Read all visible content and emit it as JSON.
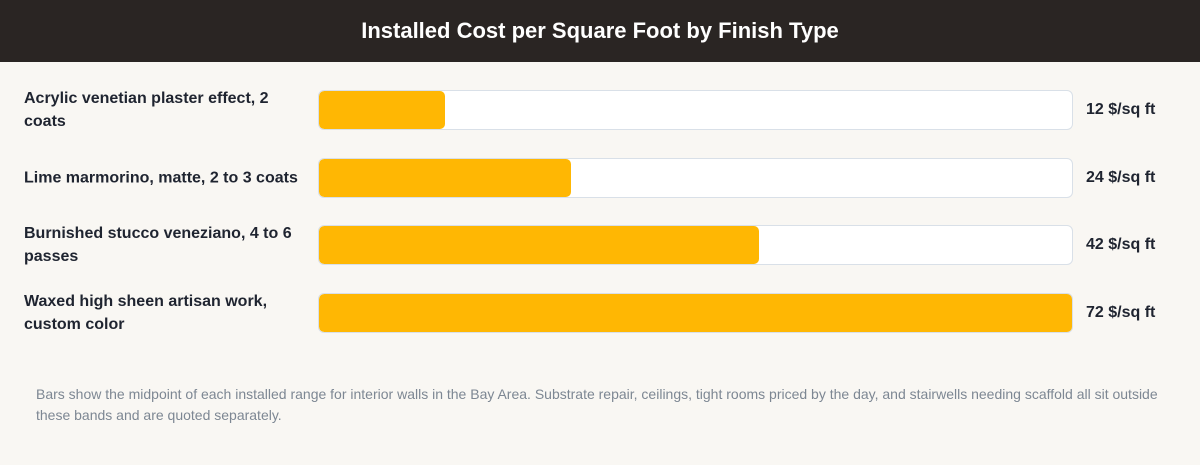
{
  "chart_data": {
    "type": "bar",
    "orientation": "horizontal",
    "title": "Installed Cost per Square Foot by Finish Type",
    "categories": [
      "Acrylic venetian plaster effect, 2 coats",
      "Lime marmorino, matte, 2 to 3 coats",
      "Burnished stucco veneziano, 4 to 6 passes",
      "Waxed high sheen artisan work, custom color"
    ],
    "values": [
      12,
      24,
      42,
      72
    ],
    "value_labels": [
      "12 $/sq ft",
      "24 $/sq ft",
      "42 $/sq ft",
      "72 $/sq ft"
    ],
    "unit": "$/sq ft",
    "xlim": [
      0,
      72
    ],
    "grid": false,
    "colors": {
      "bar": "#ffb703",
      "track": "#ffffff",
      "header_bg": "#2a2523"
    }
  },
  "footnote": "Bars show the midpoint of each installed range for interior walls in the Bay Area. Substrate repair, ceilings, tight rooms priced by the day, and stairwells needing scaffold all sit outside these bands and are quoted separately."
}
